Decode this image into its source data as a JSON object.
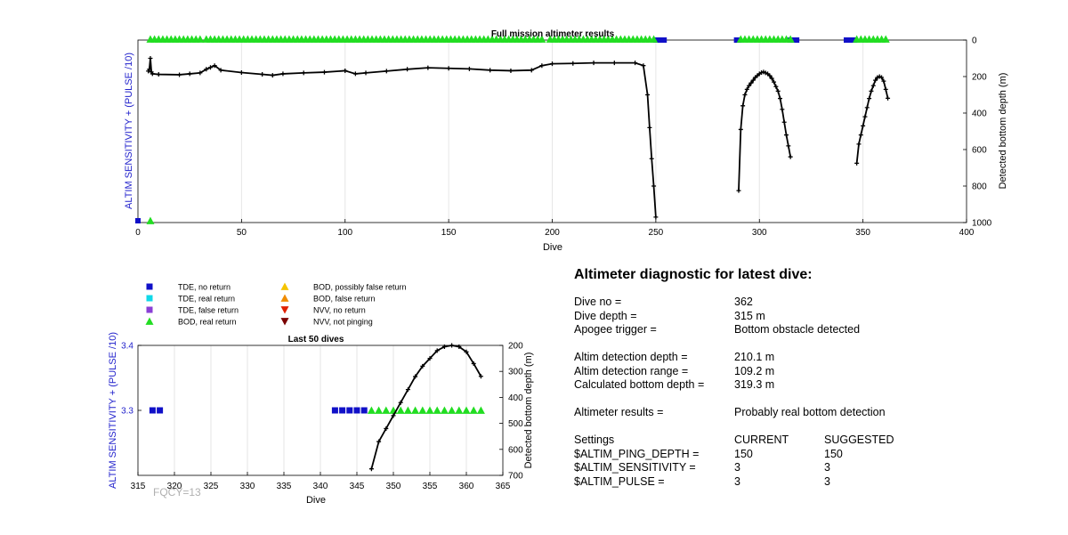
{
  "top_chart": {
    "title": "Full mission altimeter results",
    "xlabel": "Dive",
    "ylabel_left": "ALTIM SENSITIVITY + (PULSE /10)",
    "ylabel_right": "Detected bottom depth (m)",
    "xticks": [
      "0",
      "50",
      "100",
      "150",
      "200",
      "250",
      "300",
      "350",
      "400"
    ],
    "yticks_right": [
      "0",
      "200",
      "400",
      "600",
      "800",
      "1000"
    ]
  },
  "legend": {
    "items": [
      {
        "label": "TDE, no return",
        "color": "#1010c8",
        "marker": "square"
      },
      {
        "label": "TDE, real return",
        "color": "#10d8e8",
        "marker": "square"
      },
      {
        "label": "TDE, false return",
        "color": "#8a3fd6",
        "marker": "square"
      },
      {
        "label": "BOD, real return",
        "color": "#22dd22",
        "marker": "triangle-up"
      },
      {
        "label": "BOD, possibly false return",
        "color": "#f5c400",
        "marker": "triangle-up"
      },
      {
        "label": "BOD, false return",
        "color": "#f08c00",
        "marker": "triangle-up"
      },
      {
        "label": "NVV, no return",
        "color": "#e02000",
        "marker": "triangle-down"
      },
      {
        "label": "NVV, not pinging",
        "color": "#7a0000",
        "marker": "triangle-down"
      }
    ]
  },
  "bottom_chart": {
    "title": "Last 50 dives",
    "xlabel": "Dive",
    "ylabel_left": "ALTIM SENSITIVITY + (PULSE /10)",
    "ylabel_right": "Detected bottom depth (m)",
    "xticks": [
      "315",
      "320",
      "325",
      "330",
      "335",
      "340",
      "345",
      "350",
      "355",
      "360",
      "365"
    ],
    "yticks_left": [
      "3.3",
      "3.4"
    ],
    "yticks_right": [
      "200",
      "300",
      "400",
      "500",
      "600",
      "700"
    ],
    "footer": "FQCY=13"
  },
  "diagnostic": {
    "title": "Altimeter diagnostic for latest dive:",
    "rows": [
      {
        "k": "Dive no =",
        "v": "362"
      },
      {
        "k": "Dive depth =",
        "v": "315 m"
      },
      {
        "k": "Apogee trigger =",
        "v": "Bottom obstacle detected"
      },
      {
        "k": "Altim detection depth =",
        "v": "210.1 m"
      },
      {
        "k": "Altim detection range =",
        "v": "109.2 m"
      },
      {
        "k": "Calculated bottom depth =",
        "v": "319.3 m"
      },
      {
        "k": "Altimeter results =",
        "v": "Probably real bottom detection"
      }
    ],
    "settings_header": {
      "k": "Settings",
      "current": "CURRENT",
      "suggested": "SUGGESTED"
    },
    "settings": [
      {
        "k": "$ALTIM_PING_DEPTH =",
        "current": "150",
        "suggested": "150"
      },
      {
        "k": "$ALTIM_SENSITIVITY =",
        "current": "3",
        "suggested": "3"
      },
      {
        "k": "$ALTIM_PULSE =",
        "current": "3",
        "suggested": "3"
      }
    ]
  },
  "chart_data": [
    {
      "type": "line",
      "title": "Full mission altimeter results",
      "xlabel": "Dive",
      "ylabel": "Detected bottom depth (m)",
      "y2label": "ALTIM SENSITIVITY + (PULSE /10)",
      "xlim": [
        0,
        400
      ],
      "ylim": [
        1000,
        0
      ],
      "grid": "vertical",
      "bottom_depth_segments": [
        {
          "x": [
            5,
            5.5,
            6,
            6.5,
            7,
            10,
            20,
            25,
            30,
            33,
            35,
            37,
            40,
            50,
            60,
            65,
            70,
            80,
            90,
            100,
            105,
            110,
            120,
            130,
            140,
            150,
            160,
            170,
            180,
            190,
            195,
            200,
            210,
            220,
            230,
            240,
            244,
            246,
            247,
            248,
            249,
            250
          ],
          "y": [
            170,
            160,
            100,
            175,
            185,
            188,
            190,
            185,
            180,
            160,
            150,
            140,
            165,
            178,
            188,
            193,
            185,
            180,
            176,
            168,
            185,
            180,
            170,
            160,
            152,
            155,
            158,
            165,
            168,
            165,
            140,
            130,
            128,
            125,
            125,
            125,
            140,
            300,
            480,
            650,
            800,
            970
          ]
        },
        {
          "x": [
            290,
            291,
            292,
            293,
            294,
            295,
            296,
            297,
            298,
            299,
            300,
            301,
            302,
            303,
            304,
            305,
            306,
            307,
            308,
            309,
            310,
            311,
            312,
            313,
            314,
            315
          ],
          "y": [
            825,
            490,
            360,
            300,
            270,
            250,
            235,
            220,
            205,
            195,
            185,
            178,
            175,
            180,
            185,
            195,
            210,
            230,
            255,
            280,
            320,
            380,
            450,
            520,
            580,
            640
          ]
        },
        {
          "x": [
            347,
            348,
            349,
            350,
            351,
            352,
            353,
            354,
            355,
            356,
            357,
            358,
            359,
            360,
            361,
            362
          ],
          "y": [
            675,
            570,
            520,
            470,
            420,
            370,
            320,
            280,
            250,
            220,
            205,
            200,
            205,
            225,
            270,
            319
          ]
        }
      ],
      "tde_no_return_dives": [
        0,
        250,
        251,
        252,
        253,
        254,
        289,
        290,
        315,
        316,
        317,
        318,
        342,
        343,
        344,
        345,
        346
      ],
      "bod_real_return_dives": [
        6,
        8,
        10,
        12,
        14,
        16,
        18,
        20,
        22,
        24,
        26,
        28,
        30,
        33,
        35,
        37,
        39,
        41,
        43,
        45,
        47,
        49,
        51,
        53,
        55,
        57,
        59,
        61,
        63,
        65,
        67,
        69,
        71,
        73,
        75,
        77,
        79,
        81,
        83,
        85,
        87,
        89,
        91,
        93,
        95,
        97,
        99,
        101,
        103,
        105,
        107,
        109,
        111,
        113,
        115,
        117,
        119,
        121,
        123,
        125,
        127,
        129,
        131,
        133,
        135,
        137,
        139,
        141,
        143,
        145,
        147,
        149,
        151,
        153,
        155,
        157,
        159,
        161,
        163,
        165,
        167,
        169,
        171,
        173,
        175,
        177,
        179,
        181,
        183,
        185,
        187,
        189,
        191,
        193,
        195,
        199,
        201,
        203,
        205,
        207,
        209,
        211,
        213,
        215,
        217,
        219,
        221,
        223,
        225,
        227,
        229,
        231,
        233,
        235,
        237,
        239,
        241,
        243,
        245,
        247,
        249,
        291,
        293,
        295,
        297,
        299,
        301,
        303,
        305,
        307,
        309,
        311,
        313,
        315,
        347,
        349,
        351,
        353,
        355,
        357,
        359,
        361
      ]
    },
    {
      "type": "line",
      "title": "Last 50 dives",
      "xlabel": "Dive",
      "ylabel": "ALTIM SENSITIVITY + (PULSE /10)",
      "y2label": "Detected bottom depth (m)",
      "xlim": [
        315,
        365
      ],
      "ylim": [
        3.2,
        3.4
      ],
      "y2lim": [
        700,
        200
      ],
      "grid": "vertical",
      "sensitivity_markers": [
        {
          "dive": 317,
          "value": 3.3,
          "kind": "TDE, no return"
        },
        {
          "dive": 318,
          "value": 3.3,
          "kind": "TDE, no return"
        },
        {
          "dive": 342,
          "value": 3.3,
          "kind": "TDE, no return"
        },
        {
          "dive": 343,
          "value": 3.3,
          "kind": "TDE, no return"
        },
        {
          "dive": 344,
          "value": 3.3,
          "kind": "TDE, no return"
        },
        {
          "dive": 345,
          "value": 3.3,
          "kind": "TDE, no return"
        },
        {
          "dive": 346,
          "value": 3.3,
          "kind": "TDE, no return"
        },
        {
          "dive": 347,
          "value": 3.3,
          "kind": "BOD, real return"
        },
        {
          "dive": 348,
          "value": 3.3,
          "kind": "BOD, real return"
        },
        {
          "dive": 349,
          "value": 3.3,
          "kind": "BOD, real return"
        },
        {
          "dive": 350,
          "value": 3.3,
          "kind": "BOD, real return"
        },
        {
          "dive": 351,
          "value": 3.3,
          "kind": "BOD, real return"
        },
        {
          "dive": 352,
          "value": 3.3,
          "kind": "BOD, real return"
        },
        {
          "dive": 353,
          "value": 3.3,
          "kind": "BOD, real return"
        },
        {
          "dive": 354,
          "value": 3.3,
          "kind": "BOD, real return"
        },
        {
          "dive": 355,
          "value": 3.3,
          "kind": "BOD, real return"
        },
        {
          "dive": 356,
          "value": 3.3,
          "kind": "BOD, real return"
        },
        {
          "dive": 357,
          "value": 3.3,
          "kind": "BOD, real return"
        },
        {
          "dive": 358,
          "value": 3.3,
          "kind": "BOD, real return"
        },
        {
          "dive": 359,
          "value": 3.3,
          "kind": "BOD, real return"
        },
        {
          "dive": 360,
          "value": 3.3,
          "kind": "BOD, real return"
        },
        {
          "dive": 361,
          "value": 3.3,
          "kind": "BOD, real return"
        },
        {
          "dive": 362,
          "value": 3.3,
          "kind": "BOD, real return"
        }
      ],
      "bottom_depth": {
        "x": [
          347,
          348,
          349,
          350,
          351,
          352,
          353,
          354,
          355,
          356,
          357,
          358,
          359,
          360,
          361,
          362
        ],
        "y": [
          675,
          570,
          520,
          470,
          420,
          370,
          320,
          280,
          250,
          220,
          205,
          200,
          205,
          225,
          270,
          319
        ]
      }
    }
  ]
}
